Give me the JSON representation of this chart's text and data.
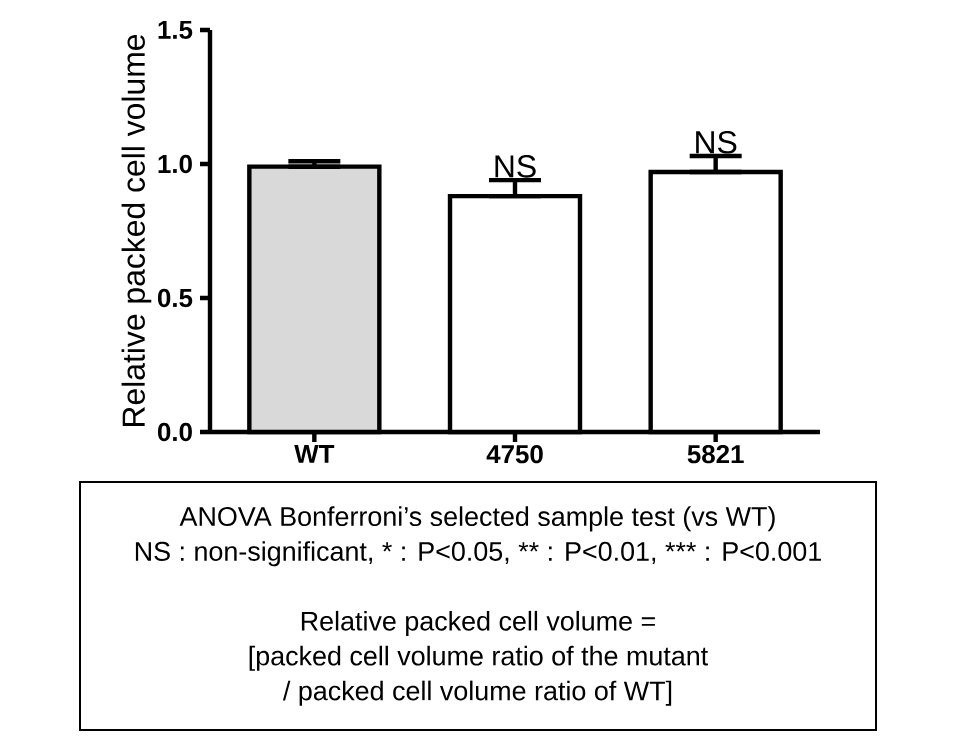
{
  "chart_data": {
    "type": "bar",
    "ylabel": "Relative packed cell volume",
    "categories": [
      "WT",
      "4750",
      "5821"
    ],
    "values": [
      0.99,
      0.88,
      0.97
    ],
    "colors": [
      "#d9d9d9",
      "#ffffff",
      "#ffffff"
    ],
    "errors": [
      [
        0.99,
        1.01
      ],
      [
        0.88,
        0.94
      ],
      [
        0.97,
        1.03
      ]
    ],
    "ylim": [
      0,
      1.5
    ],
    "yticks": [
      {
        "value": 0,
        "label": "0.0"
      },
      {
        "value": 0.5,
        "label": "0.5"
      },
      {
        "value": 1,
        "label": "1.0"
      },
      {
        "value": 1.5,
        "label": "1.5"
      }
    ],
    "annotations": [
      {
        "text": "NS",
        "x": "4750",
        "y": 0.94
      },
      {
        "text": "NS",
        "x": "5821",
        "y": 1.03
      },
      "ANOVA Bonferroni’s selected sample test (vs WT)",
      "NS : non-significant, * : P<0.05, ** : P<0.01, *** : P<0.001",
      "Relative packed cell volume =",
      "[packed cell volume ratio of the mutant",
      "/ packed cell volume ratio of WT]"
    ]
  }
}
